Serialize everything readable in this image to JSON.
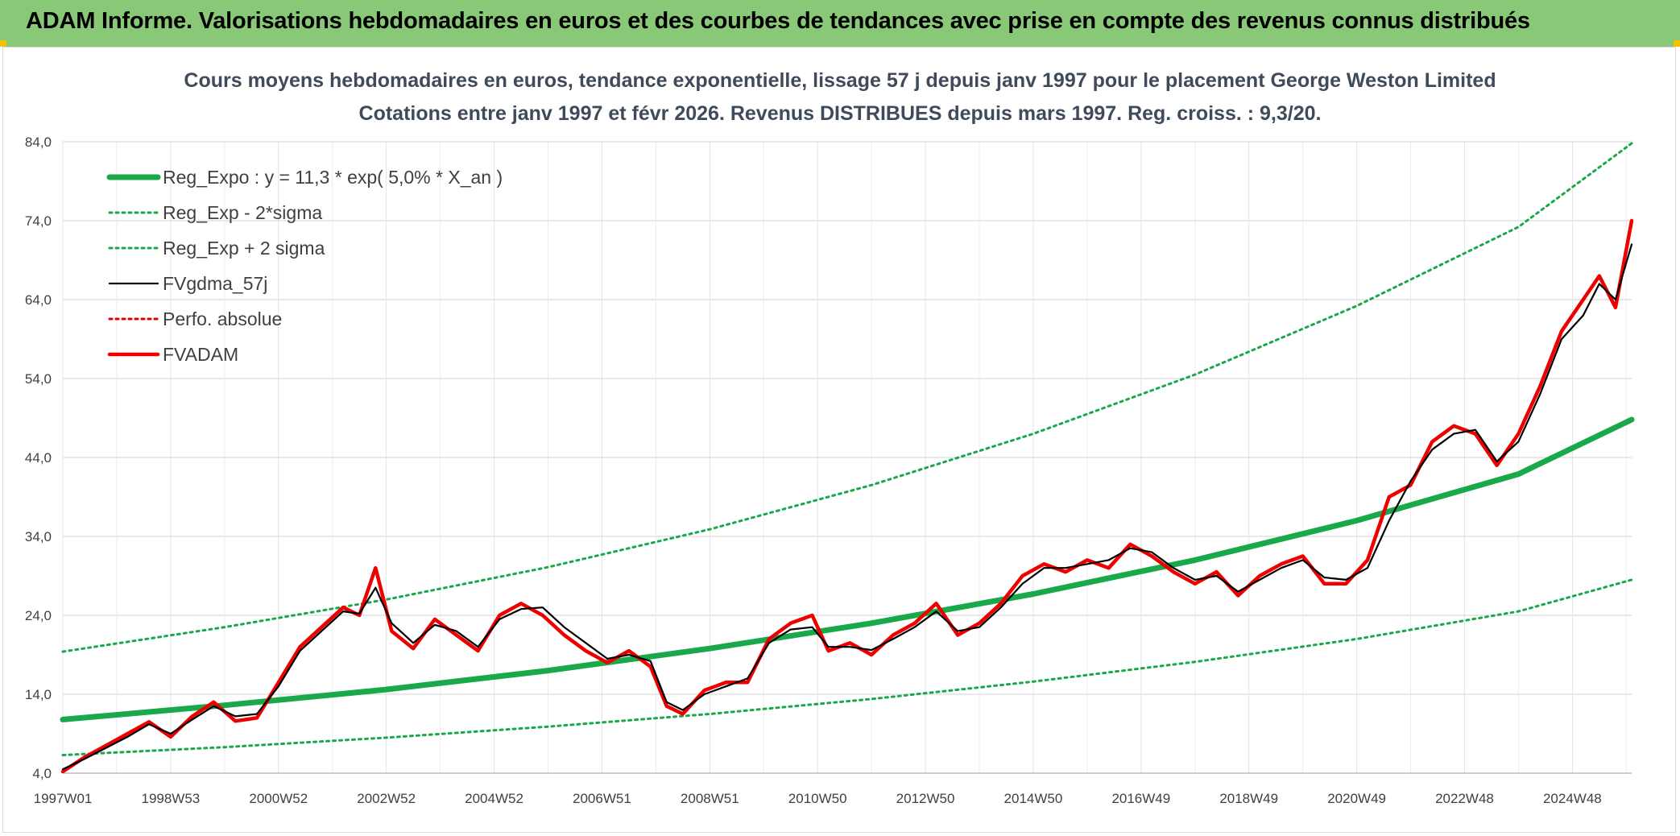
{
  "header": {
    "title": "ADAM Informe. Valorisations hebdomadaires en euros et des courbes de tendances avec prise en compte des revenus connus distribués"
  },
  "chart_data": {
    "type": "line",
    "title": "Cours moyens hebdomadaires en euros, tendance exponentielle, lissage 57 j depuis janv 1997 pour le placement George Weston Limited",
    "subtitle": "Cotations entre janv 1997 et févr 2026. Revenus DISTRIBUES depuis mars 1997. Reg. croiss. : 9,3/20.",
    "xlabel": "",
    "ylabel": "",
    "x_range": [
      1997.0,
      2026.1
    ],
    "ylim": [
      4,
      84
    ],
    "yticks": [
      "4,0",
      "14,0",
      "24,0",
      "34,0",
      "44,0",
      "54,0",
      "64,0",
      "74,0",
      "84,0"
    ],
    "xticks": [
      {
        "label": "1997W01",
        "x": 1997.0
      },
      {
        "label": "1998W53",
        "x": 1999.0
      },
      {
        "label": "2000W52",
        "x": 2001.0
      },
      {
        "label": "2002W52",
        "x": 2003.0
      },
      {
        "label": "2004W52",
        "x": 2005.0
      },
      {
        "label": "2006W51",
        "x": 2007.0
      },
      {
        "label": "2008W51",
        "x": 2009.0
      },
      {
        "label": "2010W50",
        "x": 2011.0
      },
      {
        "label": "2012W50",
        "x": 2013.0
      },
      {
        "label": "2014W50",
        "x": 2015.0
      },
      {
        "label": "2016W49",
        "x": 2017.0
      },
      {
        "label": "2018W49",
        "x": 2019.0
      },
      {
        "label": "2020W49",
        "x": 2021.0
      },
      {
        "label": "2022W48",
        "x": 2023.0
      },
      {
        "label": "2024W48",
        "x": 2025.0
      }
    ],
    "grid": true,
    "legend_placement": "top-left",
    "series": [
      {
        "name": "Reg_Expo : y = 11,3 * exp( 5,0% *  X_an )",
        "style": "thick-solid",
        "color": "#19a84a",
        "x": [
          1997,
          2000,
          2003,
          2006,
          2009,
          2012,
          2015,
          2018,
          2021,
          2024,
          2026.1
        ],
        "values": [
          10.8,
          12.6,
          14.6,
          17.0,
          19.8,
          23.0,
          26.7,
          31.0,
          36.0,
          41.9,
          48.8
        ]
      },
      {
        "name": "Reg_Exp - 2*sigma",
        "style": "dotted",
        "color": "#19a84a",
        "x": [
          1997,
          2000,
          2003,
          2006,
          2009,
          2012,
          2015,
          2018,
          2021,
          2024,
          2026.1
        ],
        "values": [
          6.3,
          7.3,
          8.5,
          9.9,
          11.5,
          13.4,
          15.6,
          18.1,
          21.0,
          24.5,
          28.5
        ]
      },
      {
        "name": "Reg_Exp + 2 sigma",
        "style": "dotted",
        "color": "#19a84a",
        "x": [
          1997,
          2000,
          2003,
          2006,
          2009,
          2012,
          2015,
          2018,
          2021,
          2024,
          2026.1
        ],
        "values": [
          19.4,
          22.5,
          26.0,
          30.1,
          34.9,
          40.5,
          47.0,
          54.5,
          63.2,
          73.2,
          83.8
        ]
      },
      {
        "name": "FVgdma_57j",
        "style": "solid",
        "color": "#000000",
        "x": [
          1997.0,
          1997.4,
          1997.8,
          1998.2,
          1998.6,
          1999.0,
          1999.4,
          1999.8,
          2000.2,
          2000.6,
          2001.0,
          2001.4,
          2001.8,
          2002.2,
          2002.5,
          2002.8,
          2003.1,
          2003.5,
          2003.9,
          2004.3,
          2004.7,
          2005.1,
          2005.5,
          2005.9,
          2006.3,
          2006.7,
          2007.1,
          2007.5,
          2007.9,
          2008.2,
          2008.5,
          2008.9,
          2009.3,
          2009.7,
          2010.1,
          2010.5,
          2010.9,
          2011.2,
          2011.6,
          2012.0,
          2012.4,
          2012.8,
          2013.2,
          2013.6,
          2014.0,
          2014.4,
          2014.8,
          2015.2,
          2015.6,
          2016.0,
          2016.4,
          2016.8,
          2017.2,
          2017.6,
          2018.0,
          2018.4,
          2018.8,
          2019.2,
          2019.6,
          2020.0,
          2020.4,
          2020.8,
          2021.2,
          2021.6,
          2022.0,
          2022.4,
          2022.8,
          2023.2,
          2023.6,
          2024.0,
          2024.4,
          2024.8,
          2025.2,
          2025.5,
          2025.8,
          2026.1
        ],
        "values": [
          4.5,
          5.8,
          7.2,
          8.6,
          10.2,
          9.0,
          10.8,
          12.5,
          11.2,
          11.5,
          15.0,
          19.5,
          22.0,
          24.5,
          24.2,
          27.5,
          23.0,
          20.5,
          22.8,
          22.0,
          20.0,
          23.5,
          24.8,
          25.0,
          22.5,
          20.5,
          18.5,
          19.0,
          18.2,
          13.0,
          12.0,
          14.0,
          15.0,
          16.0,
          20.5,
          22.2,
          22.5,
          20.0,
          20.0,
          19.6,
          21.0,
          22.5,
          24.5,
          22.0,
          22.5,
          25.0,
          28.0,
          30.0,
          30.0,
          30.5,
          31.0,
          32.5,
          32.0,
          30.0,
          28.5,
          29.0,
          27.0,
          28.5,
          30.0,
          31.0,
          28.8,
          28.5,
          30.0,
          36.0,
          41.0,
          45.0,
          47.0,
          47.5,
          43.5,
          46.0,
          52.0,
          59.0,
          62.0,
          66.0,
          64.0,
          71.0
        ]
      },
      {
        "name": "Perfo. absolue",
        "style": "dotted",
        "color": "#e00000",
        "x": [],
        "values": []
      },
      {
        "name": "FVADAM",
        "style": "thick-solid",
        "color": "#ee0000",
        "x": [
          1997.0,
          1997.4,
          1997.8,
          1998.2,
          1998.6,
          1999.0,
          1999.4,
          1999.8,
          2000.2,
          2000.6,
          2001.0,
          2001.4,
          2001.8,
          2002.2,
          2002.5,
          2002.8,
          2003.1,
          2003.5,
          2003.9,
          2004.3,
          2004.7,
          2005.1,
          2005.5,
          2005.9,
          2006.3,
          2006.7,
          2007.1,
          2007.5,
          2007.9,
          2008.2,
          2008.5,
          2008.9,
          2009.3,
          2009.7,
          2010.1,
          2010.5,
          2010.9,
          2011.2,
          2011.6,
          2012.0,
          2012.4,
          2012.8,
          2013.2,
          2013.6,
          2014.0,
          2014.4,
          2014.8,
          2015.2,
          2015.6,
          2016.0,
          2016.4,
          2016.8,
          2017.2,
          2017.6,
          2018.0,
          2018.4,
          2018.8,
          2019.2,
          2019.6,
          2020.0,
          2020.4,
          2020.8,
          2021.2,
          2021.6,
          2022.0,
          2022.4,
          2022.8,
          2023.2,
          2023.6,
          2024.0,
          2024.4,
          2024.8,
          2025.2,
          2025.5,
          2025.8,
          2026.1
        ],
        "values": [
          4.2,
          6.0,
          7.5,
          9.0,
          10.5,
          8.6,
          11.2,
          13.0,
          10.6,
          11.0,
          15.5,
          20.0,
          22.5,
          25.0,
          24.0,
          30.0,
          22.0,
          19.8,
          23.5,
          21.5,
          19.5,
          24.0,
          25.5,
          24.0,
          21.5,
          19.5,
          18.0,
          19.5,
          17.5,
          12.5,
          11.5,
          14.5,
          15.5,
          15.5,
          21.0,
          23.0,
          24.0,
          19.5,
          20.5,
          19.0,
          21.5,
          23.0,
          25.5,
          21.5,
          23.0,
          25.5,
          29.0,
          30.5,
          29.5,
          31.0,
          30.0,
          33.0,
          31.5,
          29.5,
          28.0,
          29.5,
          26.5,
          29.0,
          30.5,
          31.5,
          28.0,
          28.0,
          31.0,
          39.0,
          40.5,
          46.0,
          48.0,
          47.0,
          43.0,
          47.0,
          53.0,
          60.0,
          64.0,
          67.0,
          63.0,
          74.0
        ]
      }
    ]
  }
}
